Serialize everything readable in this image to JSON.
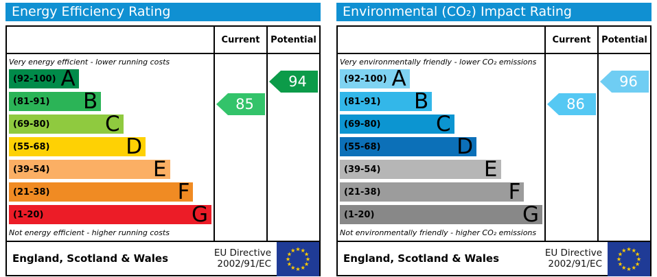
{
  "ui": {
    "header_bg": "#1090d2",
    "flag_bg": "#1f3b96",
    "flag_star": "#ffcc00"
  },
  "panels": [
    {
      "title": "Energy Efficiency Rating",
      "header": {
        "current": "Current",
        "potential": "Potential"
      },
      "top_note": "Very energy efficient - lower running costs",
      "bottom_note": "Not energy efficient - higher running costs",
      "bands": [
        {
          "letter": "A",
          "range": "(92-100)",
          "color": "#008b4a",
          "width_pct": 34.5
        },
        {
          "letter": "B",
          "range": "(81-91)",
          "color": "#2bb457",
          "width_pct": 45.5
        },
        {
          "letter": "C",
          "range": "(69-80)",
          "color": "#8fca3f",
          "width_pct": 56.5
        },
        {
          "letter": "D",
          "range": "(55-68)",
          "color": "#fed104",
          "width_pct": 67.5
        },
        {
          "letter": "E",
          "range": "(39-54)",
          "color": "#fbaf64",
          "width_pct": 79.5
        },
        {
          "letter": "F",
          "range": "(21-38)",
          "color": "#f08b23",
          "width_pct": 91.0
        },
        {
          "letter": "G",
          "range": "(1-20)",
          "color": "#ec1c27",
          "width_pct": 100
        }
      ],
      "current": {
        "value": "85",
        "band_index": 1,
        "color": "#33c36a"
      },
      "potential": {
        "value": "94",
        "band_index": 0,
        "color": "#0c9b49"
      },
      "footer": {
        "region": "England, Scotland & Wales",
        "directive_line1": "EU Directive",
        "directive_line2": "2002/91/EC"
      }
    },
    {
      "title": "Environmental (CO₂) Impact Rating",
      "header": {
        "current": "Current",
        "potential": "Potential"
      },
      "top_note": "Very environmentally friendly - lower CO₂ emissions",
      "bottom_note": "Not environmentally friendly - higher CO₂ emissions",
      "bands": [
        {
          "letter": "A",
          "range": "(92-100)",
          "color": "#7fd3f2",
          "width_pct": 34.5
        },
        {
          "letter": "B",
          "range": "(81-91)",
          "color": "#33b7e9",
          "width_pct": 45.5
        },
        {
          "letter": "C",
          "range": "(69-80)",
          "color": "#0c95d1",
          "width_pct": 56.5
        },
        {
          "letter": "D",
          "range": "(55-68)",
          "color": "#0c70b8",
          "width_pct": 67.5
        },
        {
          "letter": "E",
          "range": "(39-54)",
          "color": "#b6b6b6",
          "width_pct": 79.5
        },
        {
          "letter": "F",
          "range": "(21-38)",
          "color": "#9c9c9c",
          "width_pct": 91.0
        },
        {
          "letter": "G",
          "range": "(1-20)",
          "color": "#888888",
          "width_pct": 100
        }
      ],
      "current": {
        "value": "86",
        "band_index": 1,
        "color": "#55c8f3"
      },
      "potential": {
        "value": "96",
        "band_index": 0,
        "color": "#6fcdf3"
      },
      "footer": {
        "region": "England, Scotland & Wales",
        "directive_line1": "EU Directive",
        "directive_line2": "2002/91/EC"
      }
    }
  ],
  "chart_data": [
    {
      "type": "bar",
      "title": "Energy Efficiency Rating",
      "categories": [
        "A (92-100)",
        "B (81-91)",
        "C (69-80)",
        "D (55-68)",
        "E (39-54)",
        "F (21-38)",
        "G (1-20)"
      ],
      "series": [
        {
          "name": "Current",
          "values": [
            85
          ],
          "band": "B"
        },
        {
          "name": "Potential",
          "values": [
            94
          ],
          "band": "A"
        }
      ],
      "xlabel": "",
      "ylabel": "",
      "ylim": [
        1,
        100
      ],
      "annotations": [
        "Very energy efficient - lower running costs",
        "Not energy efficient - higher running costs",
        "England, Scotland & Wales",
        "EU Directive 2002/91/EC"
      ]
    },
    {
      "type": "bar",
      "title": "Environmental (CO₂) Impact Rating",
      "categories": [
        "A (92-100)",
        "B (81-91)",
        "C (69-80)",
        "D (55-68)",
        "E (39-54)",
        "F (21-38)",
        "G (1-20)"
      ],
      "series": [
        {
          "name": "Current",
          "values": [
            86
          ],
          "band": "B"
        },
        {
          "name": "Potential",
          "values": [
            96
          ],
          "band": "A"
        }
      ],
      "xlabel": "",
      "ylabel": "",
      "ylim": [
        1,
        100
      ],
      "annotations": [
        "Very environmentally friendly - lower CO₂ emissions",
        "Not environmentally friendly - higher CO₂ emissions",
        "England, Scotland & Wales",
        "EU Directive 2002/91/EC"
      ]
    }
  ]
}
